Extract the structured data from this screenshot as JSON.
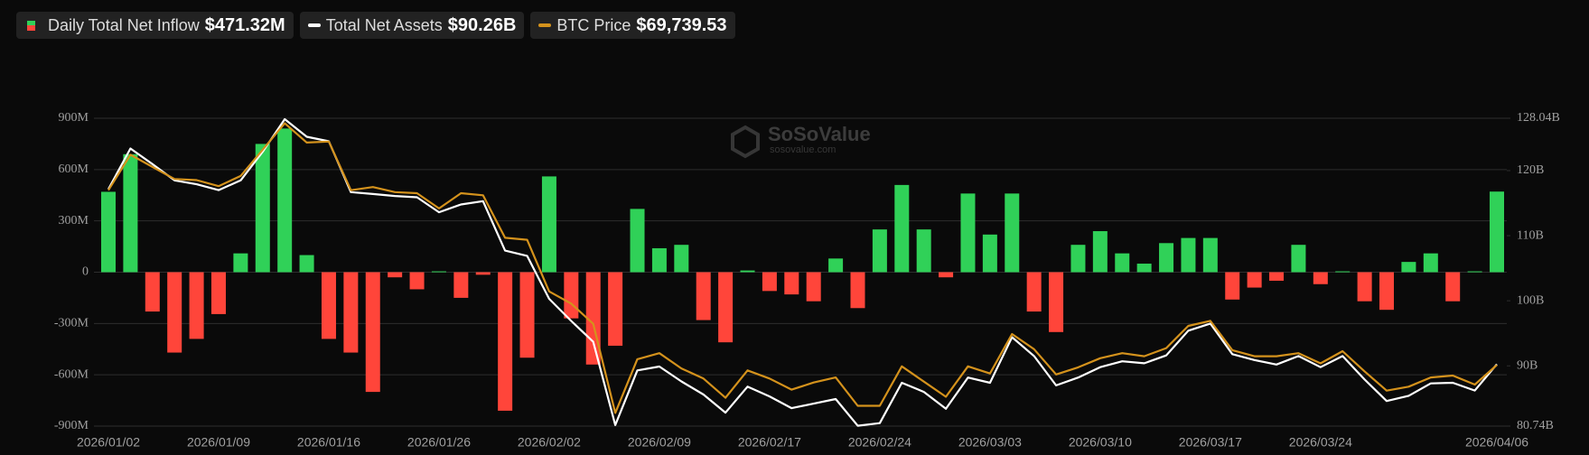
{
  "chart_data": {
    "type": "combo",
    "watermark": {
      "title": "SoSoValue",
      "subtitle": "sosovalue.com"
    },
    "categories": [
      "2026/01/02",
      null,
      null,
      null,
      null,
      "2026/01/09",
      null,
      null,
      null,
      null,
      "2026/01/16",
      null,
      null,
      null,
      null,
      "2026/01/26",
      null,
      null,
      null,
      null,
      "2026/02/02",
      null,
      null,
      null,
      null,
      "2026/02/09",
      null,
      null,
      null,
      null,
      "2026/02/17",
      null,
      null,
      null,
      null,
      "2026/02/24",
      null,
      null,
      null,
      null,
      "2026/03/03",
      null,
      null,
      null,
      null,
      "2026/03/10",
      null,
      null,
      null,
      null,
      "2026/03/17",
      null,
      null,
      null,
      null,
      "2026/03/24",
      null,
      null,
      null,
      null,
      null,
      null,
      null,
      "2026/04/06"
    ],
    "ylim": [
      -900,
      900
    ],
    "yticks": [
      {
        "value": 900,
        "label": "900M"
      },
      {
        "value": 600,
        "label": "600M"
      },
      {
        "value": 300,
        "label": "300M"
      },
      0,
      {
        "value": -300,
        "label": "-300M"
      },
      {
        "value": -600,
        "label": "-600M"
      },
      {
        "value": -900,
        "label": "-900M"
      }
    ],
    "y2lim": [
      80.74,
      128.04
    ],
    "y2ticks": [
      {
        "value": 128.04,
        "label": "128.04B"
      },
      {
        "value": 120,
        "label": "120B"
      },
      {
        "value": 110,
        "label": "110B"
      },
      {
        "value": 100,
        "label": "100B"
      },
      {
        "value": 90,
        "label": "90B"
      },
      {
        "value": 80.74,
        "label": "80.74B"
      }
    ],
    "y3lim": [
      62000,
      101000
    ],
    "grid": true,
    "series": [
      {
        "name": "Daily Total Net Inflow",
        "latest_label": "$471.32M",
        "type": "bar",
        "axis": "y",
        "positive_color": "#30d158",
        "negative_color": "#ff453a",
        "values": [
          470,
          690,
          -230,
          -470,
          -390,
          -245,
          110,
          750,
          840,
          100,
          -390,
          -470,
          -700,
          -30,
          -100,
          5,
          -150,
          -15,
          -810,
          -500,
          560,
          -270,
          -540,
          -430,
          370,
          140,
          160,
          -280,
          -410,
          10,
          -110,
          -130,
          -170,
          80,
          -210,
          250,
          510,
          250,
          -30,
          460,
          220,
          460,
          -230,
          -350,
          160,
          240,
          110,
          50,
          170,
          200,
          200,
          -160,
          -90,
          -50,
          160,
          -70,
          5,
          -170,
          -220,
          60,
          110,
          -170,
          5,
          471.32
        ]
      },
      {
        "name": "Total Net Assets",
        "latest_label": "$90.26B",
        "type": "line",
        "axis": "y2",
        "color": "#ffffff",
        "values": [
          117.15,
          123.4,
          121.0,
          118.5,
          117.9,
          117.0,
          118.5,
          122.9,
          127.9,
          125.2,
          124.5,
          116.7,
          116.4,
          116.1,
          115.9,
          113.6,
          114.8,
          115.3,
          107.7,
          106.9,
          100.3,
          96.9,
          93.7,
          80.9,
          89.3,
          89.9,
          87.6,
          85.6,
          82.8,
          86.8,
          85.3,
          83.5,
          84.2,
          84.9,
          80.8,
          81.2,
          87.4,
          86.0,
          83.4,
          88.2,
          87.4,
          94.4,
          91.5,
          87.0,
          88.2,
          89.8,
          90.7,
          90.4,
          91.6,
          95.4,
          96.5,
          91.8,
          90.9,
          90.2,
          91.5,
          89.8,
          91.5,
          87.9,
          84.6,
          85.4,
          87.3,
          87.4,
          86.2,
          90.26
        ]
      },
      {
        "name": "BTC Price",
        "latest_label": "$69,739.53",
        "type": "line",
        "axis": "y3",
        "color": "#d4921c",
        "values": [
          91890,
          96380,
          94840,
          93300,
          93170,
          92400,
          93690,
          97020,
          100360,
          97920,
          98050,
          91890,
          92280,
          91640,
          91510,
          89580,
          91510,
          91250,
          85860,
          85610,
          79060,
          77520,
          74960,
          63670,
          70470,
          71240,
          69310,
          68030,
          65590,
          69060,
          68030,
          66620,
          67520,
          68160,
          64570,
          64570,
          69570,
          67640,
          65720,
          69570,
          68670,
          73670,
          71750,
          68540,
          69440,
          70600,
          71240,
          70850,
          71880,
          74700,
          75340,
          71620,
          70850,
          70850,
          71240,
          69950,
          71490,
          68930,
          66490,
          67000,
          68160,
          68410,
          67260,
          69739.53
        ]
      }
    ]
  }
}
